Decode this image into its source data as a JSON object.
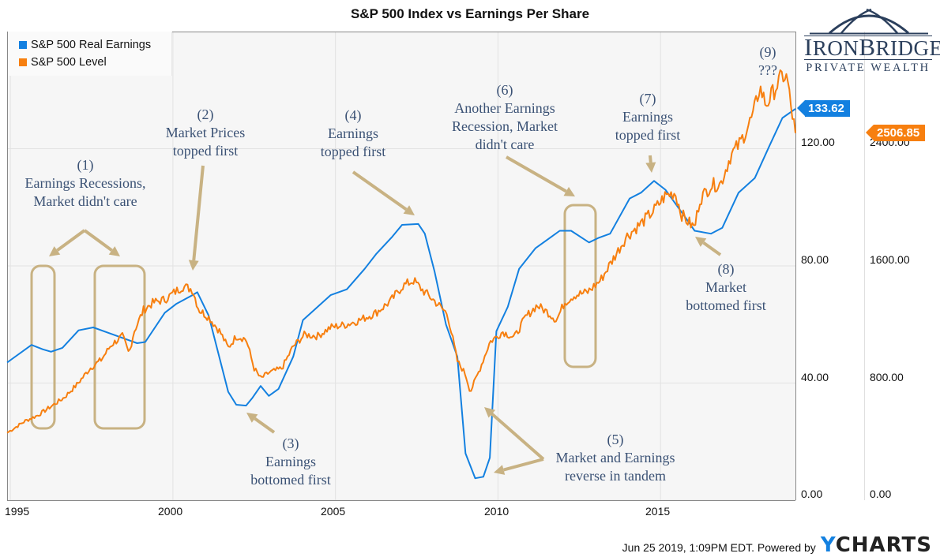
{
  "chart_data": {
    "type": "line",
    "title": "S&P 500 Index vs Earnings Per Share",
    "xlabel": "",
    "x_ticks": [
      "1995",
      "2000",
      "2005",
      "2010",
      "2015"
    ],
    "xlim": [
      1994.95,
      2019.2
    ],
    "legend_position": "top-left",
    "grid": true,
    "axes": {
      "left": {
        "label": "S&P 500 Real Earnings",
        "ylim": [
          0,
          160
        ],
        "ticks": [
          "0.00",
          "40.00",
          "80.00",
          "120.00"
        ]
      },
      "right": {
        "label": "S&P 500 Level",
        "ylim": [
          0,
          3200
        ],
        "ticks": [
          "0.00",
          "800.00",
          "1600.00",
          "2400.00"
        ]
      }
    },
    "series": [
      {
        "name": "S&P 500 Real Earnings",
        "axis": "left",
        "color": "#1380e0",
        "last_value": "133.62",
        "points": [
          [
            1994.95,
            47
          ],
          [
            1995.7,
            53
          ],
          [
            1996.05,
            51.5
          ],
          [
            1996.3,
            50.7
          ],
          [
            1996.65,
            52
          ],
          [
            1997.15,
            58
          ],
          [
            1997.6,
            59
          ],
          [
            1997.85,
            58
          ],
          [
            1998.6,
            55
          ],
          [
            1998.95,
            53.6
          ],
          [
            1999.2,
            54
          ],
          [
            1999.8,
            64
          ],
          [
            2000.15,
            67
          ],
          [
            2000.65,
            70
          ],
          [
            2000.8,
            71
          ],
          [
            2001.15,
            63
          ],
          [
            2001.75,
            37
          ],
          [
            2002.0,
            32.6
          ],
          [
            2002.3,
            32.3
          ],
          [
            2002.5,
            35
          ],
          [
            2002.75,
            39
          ],
          [
            2003.0,
            35.6
          ],
          [
            2003.3,
            38
          ],
          [
            2003.75,
            49
          ],
          [
            2004.05,
            61.5
          ],
          [
            2004.4,
            65
          ],
          [
            2004.9,
            70
          ],
          [
            2005.4,
            72
          ],
          [
            2005.95,
            79
          ],
          [
            2006.3,
            84
          ],
          [
            2006.8,
            90
          ],
          [
            2007.1,
            94
          ],
          [
            2007.6,
            94.3
          ],
          [
            2007.8,
            91
          ],
          [
            2008.1,
            78
          ],
          [
            2008.45,
            60
          ],
          [
            2008.8,
            49
          ],
          [
            2009.05,
            16
          ],
          [
            2009.35,
            7.5
          ],
          [
            2009.6,
            8
          ],
          [
            2009.8,
            14.5
          ],
          [
            2010.0,
            57.7
          ],
          [
            2010.35,
            66
          ],
          [
            2010.7,
            79
          ],
          [
            2011.2,
            86
          ],
          [
            2011.7,
            90
          ],
          [
            2011.95,
            92
          ],
          [
            2012.3,
            92
          ],
          [
            2012.85,
            88
          ],
          [
            2013.15,
            89.6
          ],
          [
            2013.5,
            91
          ],
          [
            2014.1,
            103
          ],
          [
            2014.45,
            105
          ],
          [
            2014.85,
            109
          ],
          [
            2015.2,
            106
          ],
          [
            2015.85,
            96
          ],
          [
            2016.1,
            92
          ],
          [
            2016.6,
            91
          ],
          [
            2016.95,
            93
          ],
          [
            2017.45,
            105
          ],
          [
            2017.95,
            110
          ],
          [
            2018.4,
            121
          ],
          [
            2018.8,
            130.5
          ],
          [
            2019.2,
            133.62
          ]
        ]
      },
      {
        "name": "S&P 500 Level",
        "axis": "right",
        "color": "#f77f0f",
        "last_value": "2506.85",
        "points": [
          [
            1994.95,
            460
          ],
          [
            1995.5,
            540
          ],
          [
            1995.9,
            580
          ],
          [
            1996.3,
            640
          ],
          [
            1996.7,
            700
          ],
          [
            1997.1,
            790
          ],
          [
            1997.5,
            900
          ],
          [
            1997.85,
            960
          ],
          [
            1998.15,
            1060
          ],
          [
            1998.5,
            1120
          ],
          [
            1998.7,
            1000
          ],
          [
            1998.85,
            1150
          ],
          [
            1999.15,
            1300
          ],
          [
            1999.45,
            1350
          ],
          [
            1999.8,
            1370
          ],
          [
            2000.1,
            1420
          ],
          [
            2000.35,
            1460
          ],
          [
            2000.65,
            1440
          ],
          [
            2000.85,
            1300
          ],
          [
            2001.15,
            1250
          ],
          [
            2001.5,
            1150
          ],
          [
            2001.75,
            1040
          ],
          [
            2002.0,
            1120
          ],
          [
            2002.3,
            1100
          ],
          [
            2002.55,
            900
          ],
          [
            2002.75,
            830
          ],
          [
            2003.0,
            870
          ],
          [
            2003.4,
            900
          ],
          [
            2003.75,
            1050
          ],
          [
            2004.1,
            1130
          ],
          [
            2004.5,
            1120
          ],
          [
            2004.9,
            1180
          ],
          [
            2005.4,
            1200
          ],
          [
            2005.8,
            1230
          ],
          [
            2006.3,
            1280
          ],
          [
            2006.75,
            1360
          ],
          [
            2007.1,
            1460
          ],
          [
            2007.45,
            1500
          ],
          [
            2007.75,
            1430
          ],
          [
            2008.1,
            1360
          ],
          [
            2008.5,
            1270
          ],
          [
            2008.8,
            950
          ],
          [
            2009.05,
            860
          ],
          [
            2009.2,
            740
          ],
          [
            2009.5,
            900
          ],
          [
            2009.8,
            1080
          ],
          [
            2010.2,
            1150
          ],
          [
            2010.55,
            1110
          ],
          [
            2010.9,
            1250
          ],
          [
            2011.25,
            1330
          ],
          [
            2011.6,
            1280
          ],
          [
            2011.85,
            1230
          ],
          [
            2012.1,
            1350
          ],
          [
            2012.4,
            1400
          ],
          [
            2012.8,
            1420
          ],
          [
            2013.2,
            1500
          ],
          [
            2013.6,
            1650
          ],
          [
            2014.0,
            1800
          ],
          [
            2014.5,
            1900
          ],
          [
            2014.85,
            1980
          ],
          [
            2015.2,
            2080
          ],
          [
            2015.5,
            2100
          ],
          [
            2015.7,
            1950
          ],
          [
            2015.9,
            1900
          ],
          [
            2016.1,
            1860
          ],
          [
            2016.25,
            2050
          ],
          [
            2016.6,
            2150
          ],
          [
            2016.9,
            2160
          ],
          [
            2017.2,
            2350
          ],
          [
            2017.5,
            2440
          ],
          [
            2017.9,
            2630
          ],
          [
            2018.1,
            2820
          ],
          [
            2018.3,
            2700
          ],
          [
            2018.6,
            2820
          ],
          [
            2018.8,
            2900
          ],
          [
            2018.95,
            2880
          ],
          [
            2019.05,
            2700
          ],
          [
            2019.2,
            2506.85
          ]
        ]
      }
    ],
    "annotations": [
      {
        "id": "1",
        "lines": [
          "(1)",
          "Earnings Recessions,",
          "Market didn't care"
        ]
      },
      {
        "id": "2",
        "lines": [
          "(2)",
          "Market Prices",
          "topped first"
        ]
      },
      {
        "id": "3",
        "lines": [
          "(3)",
          "Earnings",
          "bottomed first"
        ]
      },
      {
        "id": "4",
        "lines": [
          "(4)",
          "Earnings",
          "topped first"
        ]
      },
      {
        "id": "5",
        "lines": [
          "(5)",
          "Market and Earnings",
          "reverse in tandem"
        ]
      },
      {
        "id": "6",
        "lines": [
          "(6)",
          "Another Earnings",
          "Recession, Market",
          "didn't care"
        ]
      },
      {
        "id": "7",
        "lines": [
          "(7)",
          "Earnings",
          "topped first"
        ]
      },
      {
        "id": "8",
        "lines": [
          "(8)",
          "Market",
          "bottomed first"
        ]
      },
      {
        "id": "9",
        "lines": [
          "(9)",
          "???"
        ]
      }
    ]
  },
  "legend": {
    "items": [
      {
        "label": "S&P 500 Real Earnings",
        "color": "#1380e0"
      },
      {
        "label": "S&P 500 Level",
        "color": "#f77f0f"
      }
    ]
  },
  "flags": {
    "earnings": "133.62",
    "level": "2506.85"
  },
  "logo": {
    "name": "IronBridge",
    "subtitle": "PRIVATE WEALTH"
  },
  "footer": {
    "timestamp": "Jun 25 2019, 1:09PM EDT.",
    "powered_by": "Powered by",
    "brand_y": "Y",
    "brand_rest": "CHARTS"
  },
  "colors": {
    "earnings": "#1380e0",
    "level": "#f77f0f",
    "annotation_text": "#3b5275",
    "annotation_arrow": "#c8b283"
  }
}
